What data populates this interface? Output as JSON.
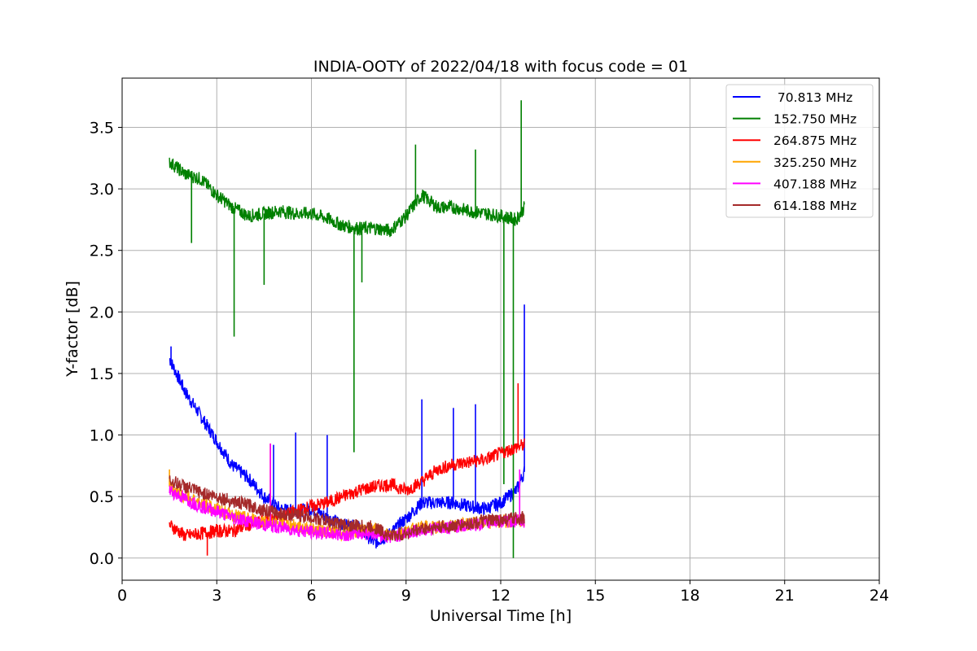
{
  "chart_data": {
    "type": "line",
    "title": "INDIA-OOTY of 2022/04/18 with focus code = 01",
    "xlabel": "Universal Time [h]",
    "ylabel": "Y-factor [dB]",
    "xlim": [
      0,
      24
    ],
    "ylim": [
      -0.18,
      3.9
    ],
    "xticks": [
      "0",
      "3",
      "6",
      "9",
      "12",
      "15",
      "18",
      "21",
      "24"
    ],
    "yticks": [
      "0.0",
      "0.5",
      "1.0",
      "1.5",
      "2.0",
      "2.5",
      "3.0",
      "3.5"
    ],
    "grid": true,
    "legend_position": "top-right",
    "series": [
      {
        "name": " 70.813 MHz",
        "color": "#0000ff",
        "points": [
          [
            1.5,
            1.62
          ],
          [
            2.0,
            1.35
          ],
          [
            2.5,
            1.15
          ],
          [
            3.0,
            0.95
          ],
          [
            3.5,
            0.75
          ],
          [
            4.0,
            0.65
          ],
          [
            4.5,
            0.5
          ],
          [
            5.0,
            0.4
          ],
          [
            5.5,
            0.38
          ],
          [
            6.0,
            0.4
          ],
          [
            6.5,
            0.33
          ],
          [
            7.0,
            0.27
          ],
          [
            7.5,
            0.25
          ],
          [
            8.0,
            0.12
          ],
          [
            8.5,
            0.2
          ],
          [
            9.0,
            0.32
          ],
          [
            9.5,
            0.45
          ],
          [
            10.0,
            0.45
          ],
          [
            10.5,
            0.45
          ],
          [
            11.0,
            0.42
          ],
          [
            11.5,
            0.4
          ],
          [
            12.0,
            0.45
          ],
          [
            12.5,
            0.55
          ],
          [
            12.75,
            0.7
          ]
        ],
        "spikes": [
          [
            1.55,
            1.72
          ],
          [
            4.8,
            0.92
          ],
          [
            5.5,
            1.02
          ],
          [
            6.5,
            1.0
          ],
          [
            9.5,
            1.29
          ],
          [
            10.5,
            1.22
          ],
          [
            11.2,
            1.25
          ],
          [
            12.75,
            2.06
          ]
        ]
      },
      {
        "name": "152.750 MHz",
        "color": "#008000",
        "points": [
          [
            1.5,
            3.22
          ],
          [
            2.0,
            3.12
          ],
          [
            2.5,
            3.08
          ],
          [
            3.0,
            2.95
          ],
          [
            3.5,
            2.85
          ],
          [
            4.0,
            2.78
          ],
          [
            4.5,
            2.8
          ],
          [
            5.0,
            2.82
          ],
          [
            5.5,
            2.8
          ],
          [
            6.0,
            2.8
          ],
          [
            6.5,
            2.76
          ],
          [
            7.0,
            2.7
          ],
          [
            7.5,
            2.68
          ],
          [
            8.0,
            2.68
          ],
          [
            8.5,
            2.66
          ],
          [
            9.0,
            2.78
          ],
          [
            9.5,
            2.95
          ],
          [
            10.0,
            2.85
          ],
          [
            10.5,
            2.85
          ],
          [
            11.0,
            2.82
          ],
          [
            11.5,
            2.8
          ],
          [
            12.0,
            2.78
          ],
          [
            12.5,
            2.75
          ],
          [
            12.75,
            2.85
          ]
        ],
        "spikes": [
          [
            2.2,
            2.56
          ],
          [
            3.55,
            1.8
          ],
          [
            4.5,
            2.22
          ],
          [
            7.35,
            0.86
          ],
          [
            7.6,
            2.24
          ],
          [
            9.3,
            3.36
          ],
          [
            11.2,
            3.32
          ],
          [
            12.1,
            0.6
          ],
          [
            12.4,
            0.0
          ],
          [
            12.65,
            3.72
          ]
        ]
      },
      {
        "name": "264.875 MHz",
        "color": "#ff0000",
        "points": [
          [
            1.5,
            0.27
          ],
          [
            2.0,
            0.18
          ],
          [
            2.5,
            0.2
          ],
          [
            3.0,
            0.22
          ],
          [
            3.5,
            0.22
          ],
          [
            4.0,
            0.27
          ],
          [
            4.5,
            0.3
          ],
          [
            5.0,
            0.33
          ],
          [
            5.5,
            0.38
          ],
          [
            6.0,
            0.42
          ],
          [
            6.5,
            0.45
          ],
          [
            7.0,
            0.5
          ],
          [
            7.5,
            0.55
          ],
          [
            8.0,
            0.58
          ],
          [
            8.5,
            0.6
          ],
          [
            9.0,
            0.55
          ],
          [
            9.5,
            0.62
          ],
          [
            10.0,
            0.72
          ],
          [
            10.5,
            0.76
          ],
          [
            11.0,
            0.78
          ],
          [
            11.5,
            0.8
          ],
          [
            12.0,
            0.85
          ],
          [
            12.5,
            0.9
          ],
          [
            12.75,
            0.92
          ]
        ],
        "spikes": [
          [
            2.7,
            0.02
          ],
          [
            4.7,
            0.93
          ],
          [
            12.55,
            1.42
          ]
        ]
      },
      {
        "name": "325.250 MHz",
        "color": "#ffa500",
        "points": [
          [
            1.5,
            0.58
          ],
          [
            2.0,
            0.5
          ],
          [
            2.5,
            0.45
          ],
          [
            3.0,
            0.4
          ],
          [
            3.5,
            0.35
          ],
          [
            4.0,
            0.32
          ],
          [
            4.5,
            0.3
          ],
          [
            5.0,
            0.28
          ],
          [
            5.5,
            0.26
          ],
          [
            6.0,
            0.24
          ],
          [
            6.5,
            0.22
          ],
          [
            7.0,
            0.2
          ],
          [
            7.5,
            0.22
          ],
          [
            8.0,
            0.24
          ],
          [
            8.5,
            0.18
          ],
          [
            9.0,
            0.22
          ],
          [
            9.5,
            0.25
          ],
          [
            10.0,
            0.25
          ],
          [
            10.5,
            0.26
          ],
          [
            11.0,
            0.28
          ],
          [
            11.5,
            0.28
          ],
          [
            12.0,
            0.3
          ],
          [
            12.5,
            0.3
          ],
          [
            12.75,
            0.3
          ]
        ],
        "spikes": [
          [
            1.5,
            0.72
          ]
        ]
      },
      {
        "name": "407.188 MHz",
        "color": "#ff00ff",
        "points": [
          [
            1.5,
            0.55
          ],
          [
            2.0,
            0.48
          ],
          [
            2.5,
            0.42
          ],
          [
            3.0,
            0.38
          ],
          [
            3.5,
            0.33
          ],
          [
            4.0,
            0.3
          ],
          [
            4.5,
            0.27
          ],
          [
            5.0,
            0.25
          ],
          [
            5.5,
            0.23
          ],
          [
            6.0,
            0.21
          ],
          [
            6.5,
            0.2
          ],
          [
            7.0,
            0.19
          ],
          [
            7.5,
            0.2
          ],
          [
            8.0,
            0.2
          ],
          [
            8.5,
            0.17
          ],
          [
            9.0,
            0.2
          ],
          [
            9.5,
            0.23
          ],
          [
            10.0,
            0.24
          ],
          [
            10.5,
            0.25
          ],
          [
            11.0,
            0.27
          ],
          [
            11.5,
            0.28
          ],
          [
            12.0,
            0.3
          ],
          [
            12.5,
            0.3
          ],
          [
            12.75,
            0.3
          ]
        ],
        "spikes": [
          [
            4.7,
            0.93
          ],
          [
            12.6,
            0.72
          ]
        ]
      },
      {
        "name": "614.188 MHz",
        "color": "#a52a2a",
        "points": [
          [
            1.5,
            0.63
          ],
          [
            2.0,
            0.58
          ],
          [
            2.5,
            0.53
          ],
          [
            3.0,
            0.5
          ],
          [
            3.5,
            0.46
          ],
          [
            4.0,
            0.43
          ],
          [
            4.5,
            0.39
          ],
          [
            5.0,
            0.36
          ],
          [
            5.5,
            0.35
          ],
          [
            6.0,
            0.33
          ],
          [
            6.5,
            0.3
          ],
          [
            7.0,
            0.27
          ],
          [
            7.5,
            0.26
          ],
          [
            8.0,
            0.25
          ],
          [
            8.5,
            0.18
          ],
          [
            9.0,
            0.2
          ],
          [
            9.5,
            0.24
          ],
          [
            10.0,
            0.25
          ],
          [
            10.5,
            0.26
          ],
          [
            11.0,
            0.28
          ],
          [
            11.5,
            0.3
          ],
          [
            12.0,
            0.31
          ],
          [
            12.5,
            0.32
          ],
          [
            12.75,
            0.33
          ]
        ],
        "spikes": []
      }
    ]
  }
}
